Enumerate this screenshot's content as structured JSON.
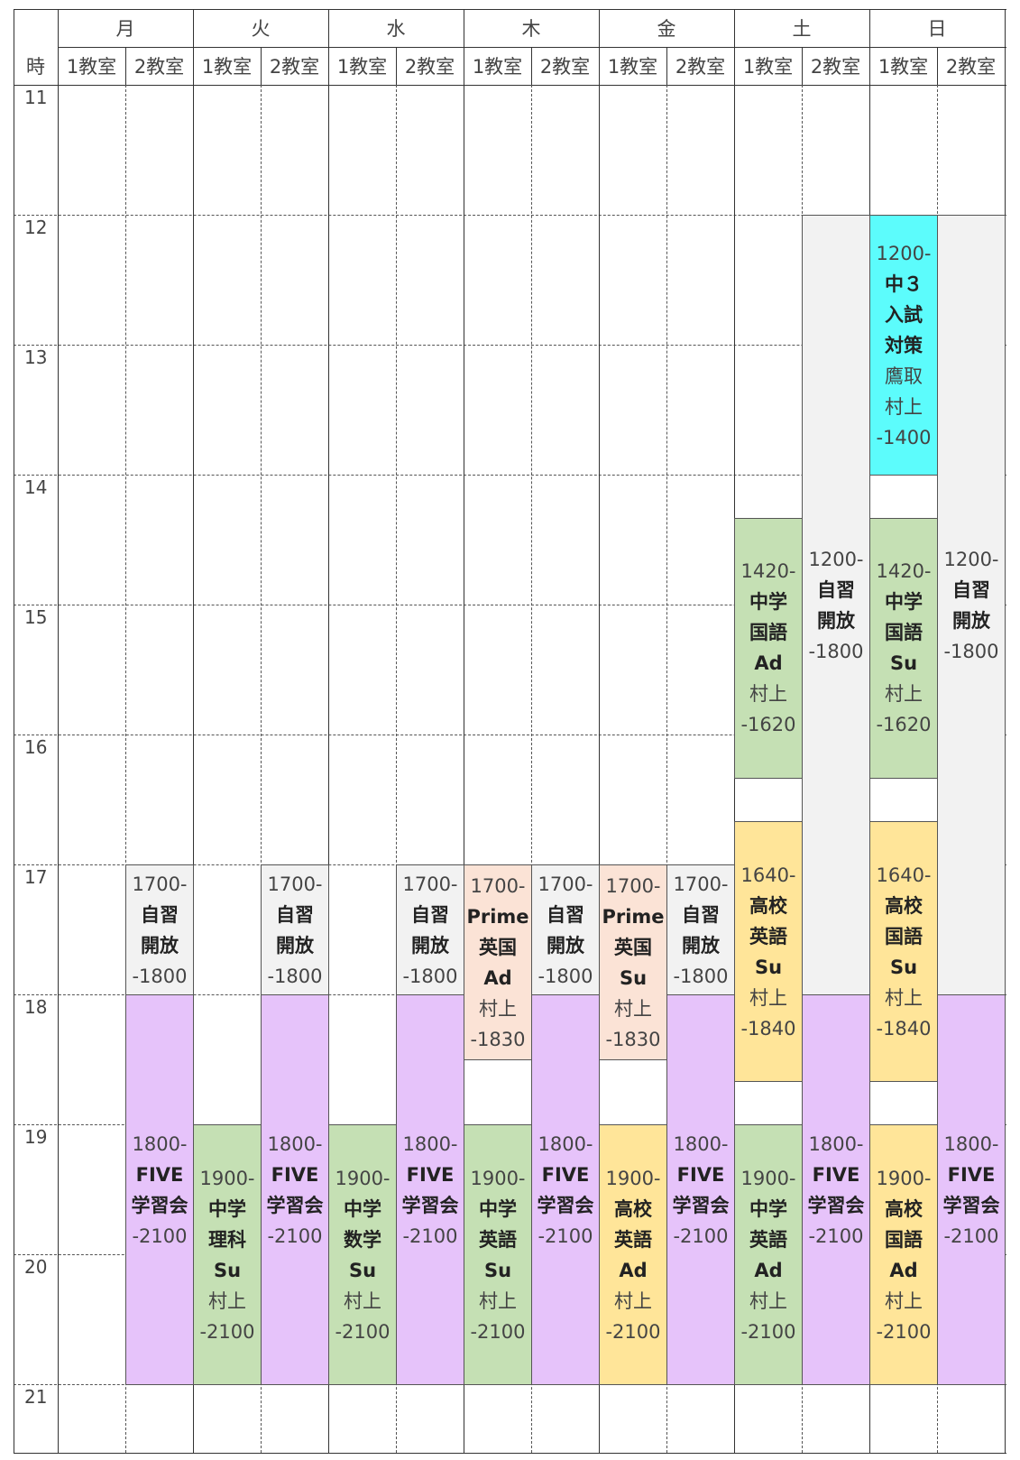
{
  "header": {
    "time_label": "時",
    "days": [
      "月",
      "火",
      "水",
      "木",
      "金",
      "土",
      "日"
    ],
    "room1": "1教室",
    "room2": "2教室"
  },
  "hours": [
    "11",
    "12",
    "13",
    "14",
    "15",
    "16",
    "17",
    "18",
    "19",
    "20",
    "21"
  ],
  "colors": {
    "self_study": "#f2f2f2",
    "five": "#e6c3fa",
    "green": "#c5e0b4",
    "yellow": "#ffe599",
    "peach": "#fbe3d6",
    "cyan": "#5cfcfc"
  },
  "events": [
    {
      "day": 0,
      "room": 1,
      "start": 17,
      "end": 18,
      "color": "self_study",
      "lines": [
        {
          "t": "1700-",
          "b": false
        },
        {
          "t": "自習",
          "b": true
        },
        {
          "t": "開放",
          "b": true
        },
        {
          "t": "-1800",
          "b": false
        }
      ]
    },
    {
      "day": 0,
      "room": 1,
      "start": 18,
      "end": 21,
      "color": "five",
      "lines": [
        {
          "t": "1800-",
          "b": false
        },
        {
          "t": "FIVE",
          "b": true
        },
        {
          "t": "学習会",
          "b": true
        },
        {
          "t": "-2100",
          "b": false
        }
      ]
    },
    {
      "day": 1,
      "room": 0,
      "start": 19,
      "end": 21,
      "color": "green",
      "lines": [
        {
          "t": "1900-",
          "b": false
        },
        {
          "t": "中学",
          "b": true
        },
        {
          "t": "理科",
          "b": true
        },
        {
          "t": "Su",
          "b": true
        },
        {
          "t": "村上",
          "b": false
        },
        {
          "t": "-2100",
          "b": false
        }
      ]
    },
    {
      "day": 1,
      "room": 1,
      "start": 17,
      "end": 18,
      "color": "self_study",
      "lines": [
        {
          "t": "1700-",
          "b": false
        },
        {
          "t": "自習",
          "b": true
        },
        {
          "t": "開放",
          "b": true
        },
        {
          "t": "-1800",
          "b": false
        }
      ]
    },
    {
      "day": 1,
      "room": 1,
      "start": 18,
      "end": 21,
      "color": "five",
      "lines": [
        {
          "t": "1800-",
          "b": false
        },
        {
          "t": "FIVE",
          "b": true
        },
        {
          "t": "学習会",
          "b": true
        },
        {
          "t": "-2100",
          "b": false
        }
      ]
    },
    {
      "day": 2,
      "room": 0,
      "start": 19,
      "end": 21,
      "color": "green",
      "lines": [
        {
          "t": "1900-",
          "b": false
        },
        {
          "t": "中学",
          "b": true
        },
        {
          "t": "数学",
          "b": true
        },
        {
          "t": "Su",
          "b": true
        },
        {
          "t": "村上",
          "b": false
        },
        {
          "t": "-2100",
          "b": false
        }
      ]
    },
    {
      "day": 2,
      "room": 1,
      "start": 17,
      "end": 18,
      "color": "self_study",
      "lines": [
        {
          "t": "1700-",
          "b": false
        },
        {
          "t": "自習",
          "b": true
        },
        {
          "t": "開放",
          "b": true
        },
        {
          "t": "-1800",
          "b": false
        }
      ]
    },
    {
      "day": 2,
      "room": 1,
      "start": 18,
      "end": 21,
      "color": "five",
      "lines": [
        {
          "t": "1800-",
          "b": false
        },
        {
          "t": "FIVE",
          "b": true
        },
        {
          "t": "学習会",
          "b": true
        },
        {
          "t": "-2100",
          "b": false
        }
      ]
    },
    {
      "day": 3,
      "room": 0,
      "start": 17,
      "end": 18.5,
      "color": "peach",
      "lines": [
        {
          "t": "1700-",
          "b": false
        },
        {
          "t": "Prime",
          "b": true
        },
        {
          "t": "英国",
          "b": true
        },
        {
          "t": "Ad",
          "b": true
        },
        {
          "t": "村上",
          "b": false
        },
        {
          "t": "-1830",
          "b": false
        }
      ]
    },
    {
      "day": 3,
      "room": 0,
      "start": 19,
      "end": 21,
      "color": "green",
      "lines": [
        {
          "t": "1900-",
          "b": false
        },
        {
          "t": "中学",
          "b": true
        },
        {
          "t": "英語",
          "b": true
        },
        {
          "t": "Su",
          "b": true
        },
        {
          "t": "村上",
          "b": false
        },
        {
          "t": "-2100",
          "b": false
        }
      ]
    },
    {
      "day": 3,
      "room": 1,
      "start": 17,
      "end": 18,
      "color": "self_study",
      "lines": [
        {
          "t": "1700-",
          "b": false
        },
        {
          "t": "自習",
          "b": true
        },
        {
          "t": "開放",
          "b": true
        },
        {
          "t": "-1800",
          "b": false
        }
      ]
    },
    {
      "day": 3,
      "room": 1,
      "start": 18,
      "end": 21,
      "color": "five",
      "lines": [
        {
          "t": "1800-",
          "b": false
        },
        {
          "t": "FIVE",
          "b": true
        },
        {
          "t": "学習会",
          "b": true
        },
        {
          "t": "-2100",
          "b": false
        }
      ]
    },
    {
      "day": 4,
      "room": 0,
      "start": 17,
      "end": 18.5,
      "color": "peach",
      "lines": [
        {
          "t": "1700-",
          "b": false
        },
        {
          "t": "Prime",
          "b": true
        },
        {
          "t": "英国",
          "b": true
        },
        {
          "t": "Su",
          "b": true
        },
        {
          "t": "村上",
          "b": false
        },
        {
          "t": "-1830",
          "b": false
        }
      ]
    },
    {
      "day": 4,
      "room": 0,
      "start": 19,
      "end": 21,
      "color": "yellow",
      "lines": [
        {
          "t": "1900-",
          "b": false
        },
        {
          "t": "高校",
          "b": true
        },
        {
          "t": "英語",
          "b": true
        },
        {
          "t": "Ad",
          "b": true
        },
        {
          "t": "村上",
          "b": false
        },
        {
          "t": "-2100",
          "b": false
        }
      ]
    },
    {
      "day": 4,
      "room": 1,
      "start": 17,
      "end": 18,
      "color": "self_study",
      "lines": [
        {
          "t": "1700-",
          "b": false
        },
        {
          "t": "自習",
          "b": true
        },
        {
          "t": "開放",
          "b": true
        },
        {
          "t": "-1800",
          "b": false
        }
      ]
    },
    {
      "day": 4,
      "room": 1,
      "start": 18,
      "end": 21,
      "color": "five",
      "lines": [
        {
          "t": "1800-",
          "b": false
        },
        {
          "t": "FIVE",
          "b": true
        },
        {
          "t": "学習会",
          "b": true
        },
        {
          "t": "-2100",
          "b": false
        }
      ]
    },
    {
      "day": 5,
      "room": 0,
      "start": 14.333,
      "end": 16.333,
      "color": "green",
      "lines": [
        {
          "t": "1420-",
          "b": false
        },
        {
          "t": "中学",
          "b": true
        },
        {
          "t": "国語",
          "b": true
        },
        {
          "t": "Ad",
          "b": true
        },
        {
          "t": "村上",
          "b": false
        },
        {
          "t": "-1620",
          "b": false
        }
      ]
    },
    {
      "day": 5,
      "room": 0,
      "start": 16.667,
      "end": 18.667,
      "color": "yellow",
      "lines": [
        {
          "t": "1640-",
          "b": false
        },
        {
          "t": "高校",
          "b": true
        },
        {
          "t": "英語",
          "b": true
        },
        {
          "t": "Su",
          "b": true
        },
        {
          "t": "村上",
          "b": false
        },
        {
          "t": "-1840",
          "b": false
        }
      ]
    },
    {
      "day": 5,
      "room": 0,
      "start": 19,
      "end": 21,
      "color": "green",
      "lines": [
        {
          "t": "1900-",
          "b": false
        },
        {
          "t": "中学",
          "b": true
        },
        {
          "t": "英語",
          "b": true
        },
        {
          "t": "Ad",
          "b": true
        },
        {
          "t": "村上",
          "b": false
        },
        {
          "t": "-2100",
          "b": false
        }
      ]
    },
    {
      "day": 5,
      "room": 1,
      "start": 12,
      "end": 18,
      "color": "self_study",
      "lines": [
        {
          "t": "1200-",
          "b": false
        },
        {
          "t": "自習",
          "b": true
        },
        {
          "t": "開放",
          "b": true
        },
        {
          "t": "-1800",
          "b": false
        }
      ]
    },
    {
      "day": 5,
      "room": 1,
      "start": 18,
      "end": 21,
      "color": "five",
      "lines": [
        {
          "t": "1800-",
          "b": false
        },
        {
          "t": "FIVE",
          "b": true
        },
        {
          "t": "学習会",
          "b": true
        },
        {
          "t": "-2100",
          "b": false
        }
      ]
    },
    {
      "day": 6,
      "room": 0,
      "start": 12,
      "end": 14,
      "color": "cyan",
      "lines": [
        {
          "t": "1200-",
          "b": false
        },
        {
          "t": "中３",
          "b": true
        },
        {
          "t": "入試",
          "b": true
        },
        {
          "t": "対策",
          "b": true
        },
        {
          "t": "鷹取",
          "b": false
        },
        {
          "t": "村上",
          "b": false
        },
        {
          "t": "-1400",
          "b": false
        }
      ]
    },
    {
      "day": 6,
      "room": 0,
      "start": 14.333,
      "end": 16.333,
      "color": "green",
      "lines": [
        {
          "t": "1420-",
          "b": false
        },
        {
          "t": "中学",
          "b": true
        },
        {
          "t": "国語",
          "b": true
        },
        {
          "t": "Su",
          "b": true
        },
        {
          "t": "村上",
          "b": false
        },
        {
          "t": "-1620",
          "b": false
        }
      ]
    },
    {
      "day": 6,
      "room": 0,
      "start": 16.667,
      "end": 18.667,
      "color": "yellow",
      "lines": [
        {
          "t": "1640-",
          "b": false
        },
        {
          "t": "高校",
          "b": true
        },
        {
          "t": "国語",
          "b": true
        },
        {
          "t": "Su",
          "b": true
        },
        {
          "t": "村上",
          "b": false
        },
        {
          "t": "-1840",
          "b": false
        }
      ]
    },
    {
      "day": 6,
      "room": 0,
      "start": 19,
      "end": 21,
      "color": "yellow",
      "lines": [
        {
          "t": "1900-",
          "b": false
        },
        {
          "t": "高校",
          "b": true
        },
        {
          "t": "国語",
          "b": true
        },
        {
          "t": "Ad",
          "b": true
        },
        {
          "t": "村上",
          "b": false
        },
        {
          "t": "-2100",
          "b": false
        }
      ]
    },
    {
      "day": 6,
      "room": 1,
      "start": 12,
      "end": 18,
      "color": "self_study",
      "lines": [
        {
          "t": "1200-",
          "b": false
        },
        {
          "t": "自習",
          "b": true
        },
        {
          "t": "開放",
          "b": true
        },
        {
          "t": "-1800",
          "b": false
        }
      ]
    },
    {
      "day": 6,
      "room": 1,
      "start": 18,
      "end": 21,
      "color": "five",
      "lines": [
        {
          "t": "1800-",
          "b": false
        },
        {
          "t": "FIVE",
          "b": true
        },
        {
          "t": "学習会",
          "b": true
        },
        {
          "t": "-2100",
          "b": false
        }
      ]
    }
  ]
}
